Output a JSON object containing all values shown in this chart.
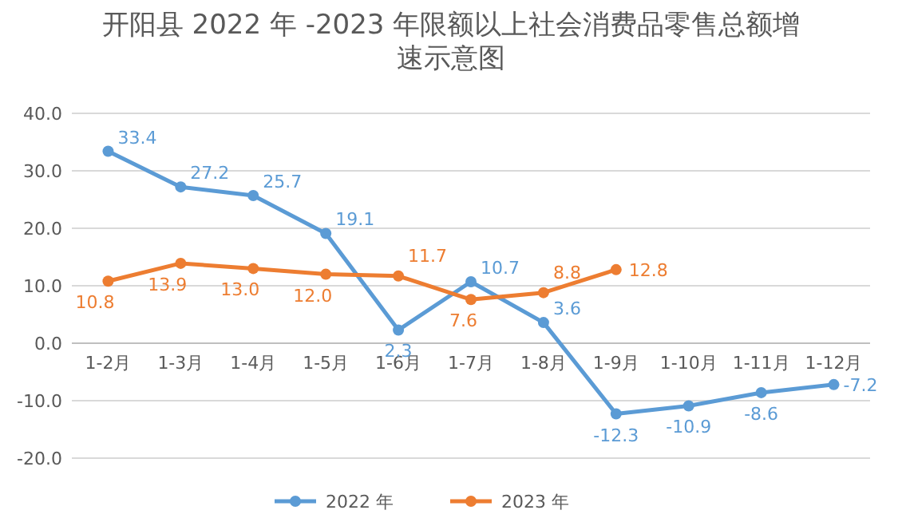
{
  "chart_data": {
    "type": "line",
    "title": "开阳县 2022 年 -2023 年限额以上社会消费品零售总额增速示意图",
    "categories": [
      "1-2月",
      "1-3月",
      "1-4月",
      "1-5月",
      "1-6月",
      "1-7月",
      "1-8月",
      "1-9月",
      "1-10月",
      "1-11月",
      "1-12月"
    ],
    "series": [
      {
        "name": "2022 年",
        "color": "#5b9bd5",
        "values": [
          33.4,
          27.2,
          25.7,
          19.1,
          2.3,
          10.7,
          3.6,
          -12.3,
          -10.9,
          -8.6,
          -7.2
        ],
        "value_labels": [
          "33.4",
          "27.2",
          "25.7",
          "19.1",
          "2.3",
          "10.7",
          "3.6",
          "-12.3",
          "-10.9",
          "-8.6",
          "-7.2"
        ]
      },
      {
        "name": "2023 年",
        "color": "#ed7d31",
        "values": [
          10.8,
          13.9,
          13.0,
          12.0,
          11.7,
          7.6,
          8.8,
          12.8,
          null,
          null,
          null
        ],
        "value_labels": [
          "10.8",
          "13.9",
          "13.0",
          "12.0",
          "11.7",
          "7.6",
          "8.8",
          "12.8",
          null,
          null,
          null
        ]
      }
    ],
    "ylim": [
      -20,
      40
    ],
    "yticks": [
      {
        "value": -20,
        "label": "-20.0"
      },
      {
        "value": -10,
        "label": "-10.0"
      },
      {
        "value": 0,
        "label": "0.0"
      },
      {
        "value": 10,
        "label": "10.0"
      },
      {
        "value": 20,
        "label": "20.0"
      },
      {
        "value": 30,
        "label": "30.0"
      },
      {
        "value": 40,
        "label": "40.0"
      }
    ],
    "grid": "y",
    "legend": "bottom",
    "marker": "circle",
    "line_style": "solid"
  }
}
